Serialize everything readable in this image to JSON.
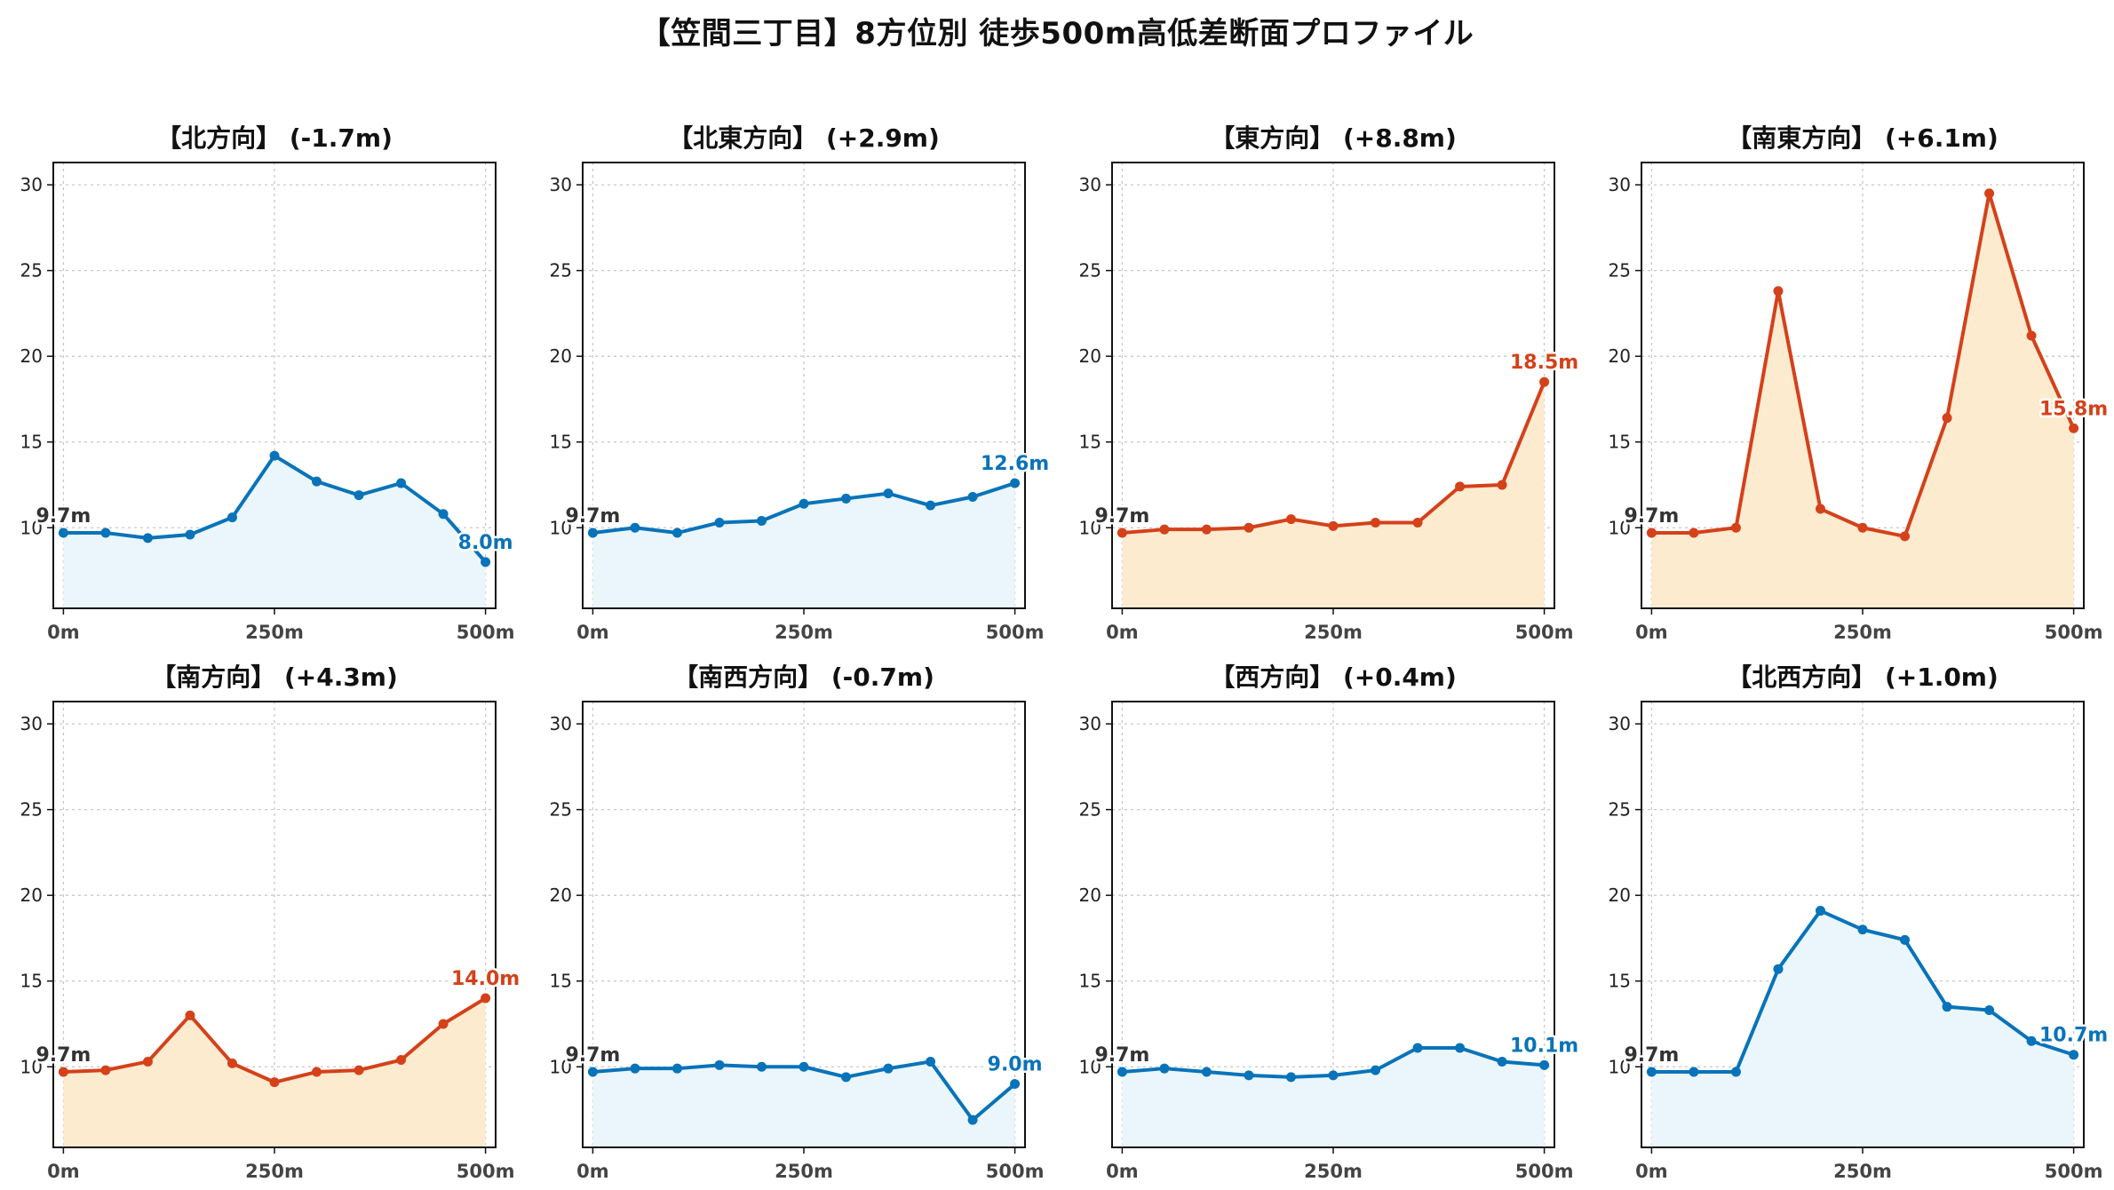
{
  "title": "【笠間三丁目】8方位別 徒歩500m高低差断面プロファイル",
  "colors": {
    "uphill_line": "#d4411a",
    "uphill_fill": "#fdebd0",
    "downhill_line": "#0873b9",
    "downhill_fill": "#eaf6fb"
  },
  "chart_data": [
    {
      "type": "area",
      "title": "【北方向】 (-1.7m)",
      "trend": "down",
      "x": [
        0,
        50,
        100,
        150,
        200,
        250,
        300,
        350,
        400,
        450,
        500
      ],
      "y": [
        9.7,
        9.7,
        9.4,
        9.6,
        10.6,
        14.2,
        12.7,
        11.9,
        12.6,
        10.8,
        8.0
      ],
      "start_label": "9.7m",
      "end_label": "8.0m"
    },
    {
      "type": "area",
      "title": "【北東方向】 (+2.9m)",
      "trend": "down",
      "x": [
        0,
        50,
        100,
        150,
        200,
        250,
        300,
        350,
        400,
        450,
        500
      ],
      "y": [
        9.7,
        10.0,
        9.7,
        10.3,
        10.4,
        11.4,
        11.7,
        12.0,
        11.3,
        11.8,
        12.6
      ],
      "start_label": "9.7m",
      "end_label": "12.6m"
    },
    {
      "type": "area",
      "title": "【東方向】 (+8.8m)",
      "trend": "up",
      "x": [
        0,
        50,
        100,
        150,
        200,
        250,
        300,
        350,
        400,
        450,
        500
      ],
      "y": [
        9.7,
        9.9,
        9.9,
        10.0,
        10.5,
        10.1,
        10.3,
        10.3,
        12.4,
        12.5,
        18.5
      ],
      "start_label": "9.7m",
      "end_label": "18.5m"
    },
    {
      "type": "area",
      "title": "【南東方向】 (+6.1m)",
      "trend": "up",
      "x": [
        0,
        50,
        100,
        150,
        200,
        250,
        300,
        350,
        400,
        450,
        500
      ],
      "y": [
        9.7,
        9.7,
        10.0,
        23.8,
        11.1,
        10.0,
        9.5,
        16.4,
        29.5,
        21.2,
        15.8
      ],
      "start_label": "9.7m",
      "end_label": "15.8m"
    },
    {
      "type": "area",
      "title": "【南方向】 (+4.3m)",
      "trend": "up",
      "x": [
        0,
        50,
        100,
        150,
        200,
        250,
        300,
        350,
        400,
        450,
        500
      ],
      "y": [
        9.7,
        9.8,
        10.3,
        13.0,
        10.2,
        9.1,
        9.7,
        9.8,
        10.4,
        12.5,
        14.0
      ],
      "start_label": "9.7m",
      "end_label": "14.0m"
    },
    {
      "type": "area",
      "title": "【南西方向】 (-0.7m)",
      "trend": "down",
      "x": [
        0,
        50,
        100,
        150,
        200,
        250,
        300,
        350,
        400,
        450,
        500
      ],
      "y": [
        9.7,
        9.9,
        9.9,
        10.1,
        10.0,
        10.0,
        9.4,
        9.9,
        10.3,
        6.9,
        9.0
      ],
      "start_label": "9.7m",
      "end_label": "9.0m"
    },
    {
      "type": "area",
      "title": "【西方向】 (+0.4m)",
      "trend": "down",
      "x": [
        0,
        50,
        100,
        150,
        200,
        250,
        300,
        350,
        400,
        450,
        500
      ],
      "y": [
        9.7,
        9.9,
        9.7,
        9.5,
        9.4,
        9.5,
        9.8,
        11.1,
        11.1,
        10.3,
        10.1
      ],
      "start_label": "9.7m",
      "end_label": "10.1m"
    },
    {
      "type": "area",
      "title": "【北西方向】 (+1.0m)",
      "trend": "down",
      "x": [
        0,
        50,
        100,
        150,
        200,
        250,
        300,
        350,
        400,
        450,
        500
      ],
      "y": [
        9.7,
        9.7,
        9.7,
        15.7,
        19.1,
        18.0,
        17.4,
        13.5,
        13.3,
        11.5,
        10.7
      ],
      "start_label": "9.7m",
      "end_label": "10.7m"
    }
  ],
  "axes": {
    "xlim": [
      -12,
      512
    ],
    "ylim": [
      5.3,
      31.3
    ],
    "yticks": [
      10,
      15,
      20,
      25,
      30
    ],
    "yticks_labels": [
      "10",
      "15",
      "20",
      "25",
      "30"
    ],
    "xticks": [
      0,
      250,
      500
    ],
    "xticks_labels": [
      "0m",
      "250m",
      "500m"
    ],
    "grid": true
  }
}
